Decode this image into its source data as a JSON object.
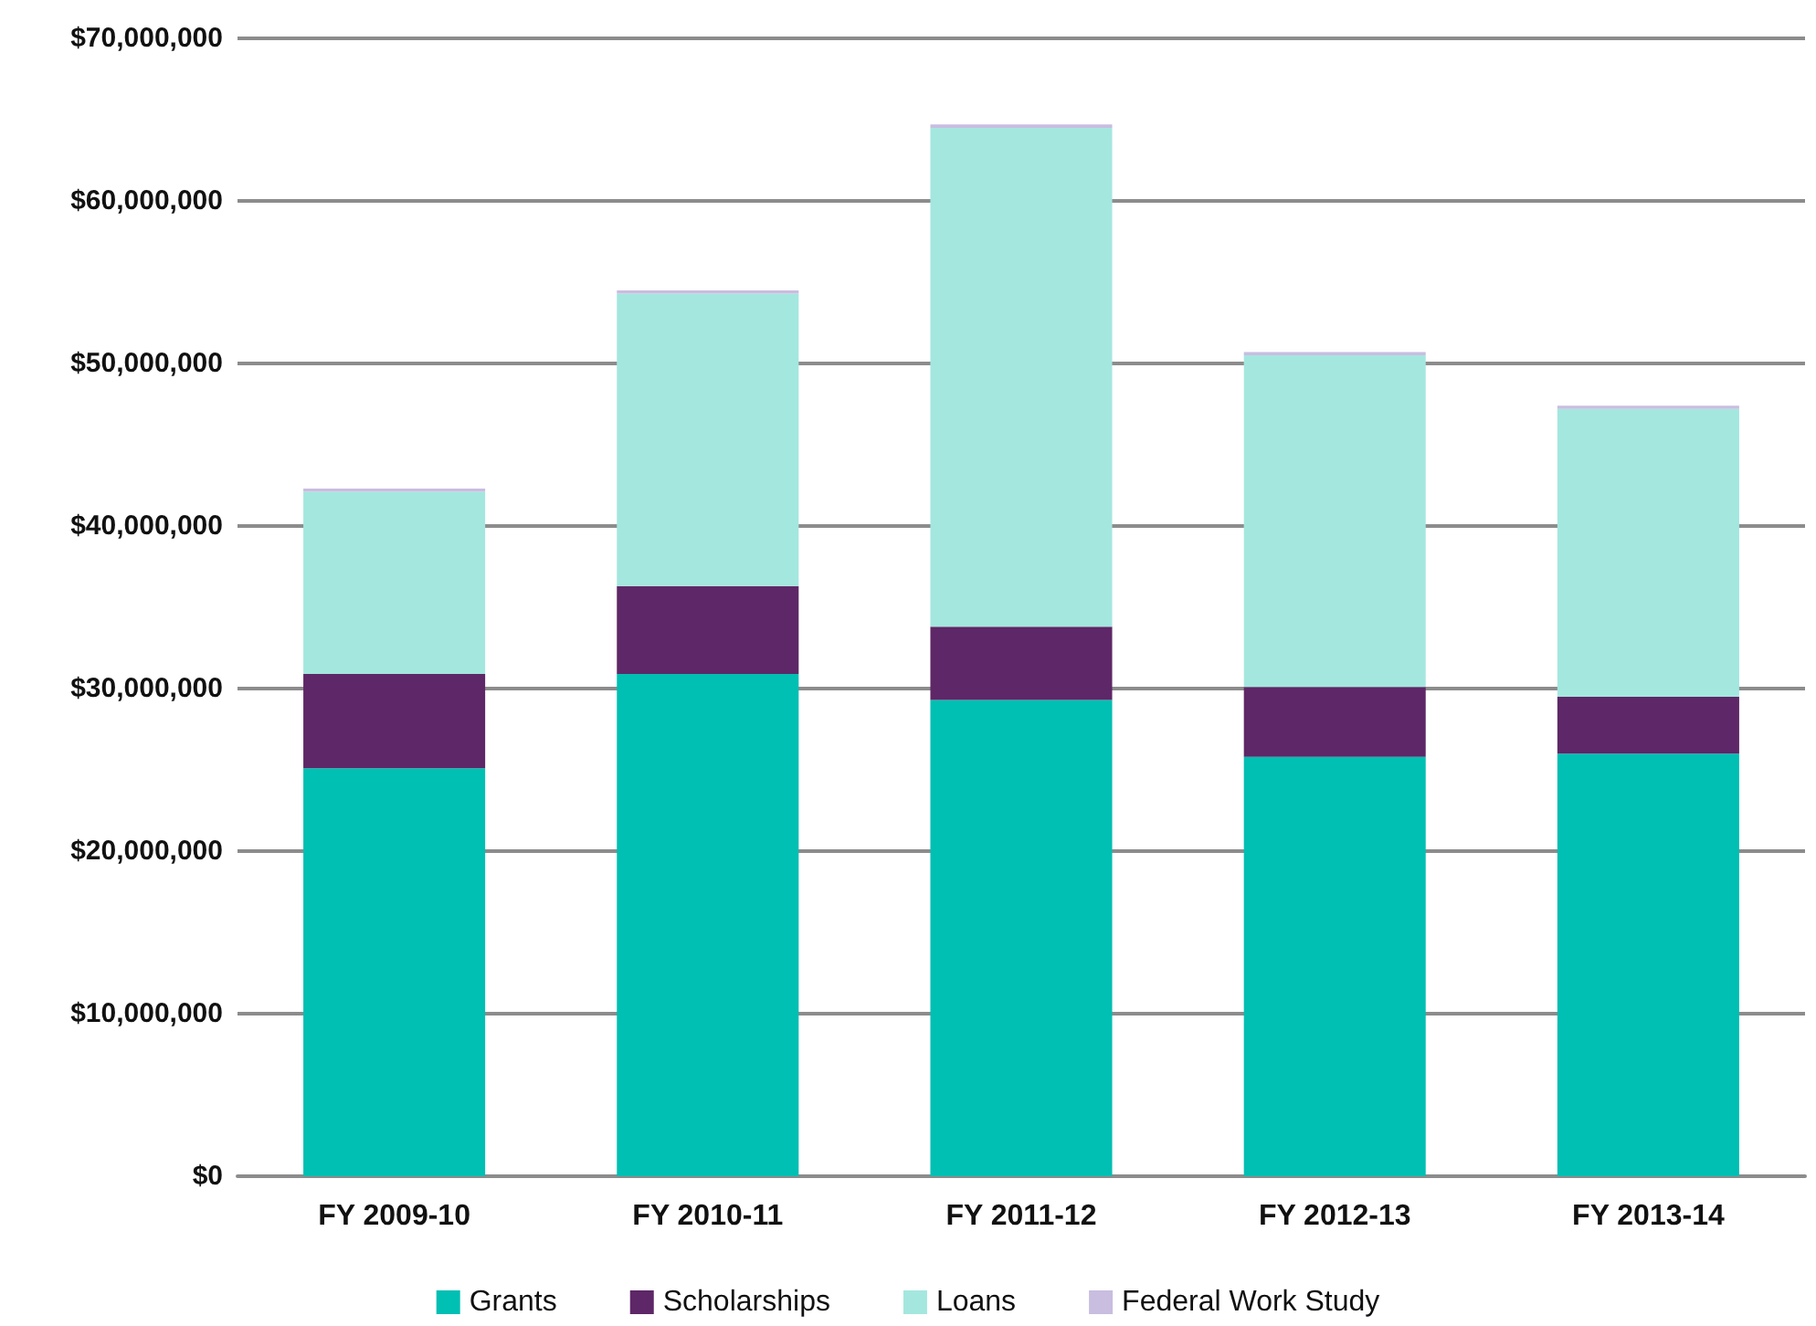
{
  "chart_data": {
    "type": "bar",
    "stacked": true,
    "categories": [
      "FY 2009-10",
      "FY 2010-11",
      "FY 2011-12",
      "FY 2012-13",
      "FY 2013-14"
    ],
    "series": [
      {
        "name": "Grants",
        "color": "#00bfb3",
        "values": [
          25100000,
          30900000,
          29300000,
          25800000,
          26000000
        ]
      },
      {
        "name": "Scholarships",
        "color": "#5e2767",
        "values": [
          5800000,
          5400000,
          4500000,
          4300000,
          3500000
        ]
      },
      {
        "name": "Loans",
        "color": "#a4e7df",
        "values": [
          11200000,
          18000000,
          30700000,
          20400000,
          17700000
        ]
      },
      {
        "name": "Federal Work Study",
        "color": "#c9bde0",
        "values": [
          200000,
          200000,
          200000,
          200000,
          200000
        ]
      }
    ],
    "ylim": [
      0,
      70000000
    ],
    "yticks": [
      {
        "value": 0,
        "label": "$0"
      },
      {
        "value": 10000000,
        "label": "$10,000,000"
      },
      {
        "value": 20000000,
        "label": "$20,000,000"
      },
      {
        "value": 30000000,
        "label": "$30,000,000"
      },
      {
        "value": 40000000,
        "label": "$40,000,000"
      },
      {
        "value": 50000000,
        "label": "$50,000,000"
      },
      {
        "value": 60000000,
        "label": "$60,000,000"
      },
      {
        "value": 70000000,
        "label": "$70,000,000"
      }
    ],
    "grid": "y",
    "legend": "bottom"
  }
}
